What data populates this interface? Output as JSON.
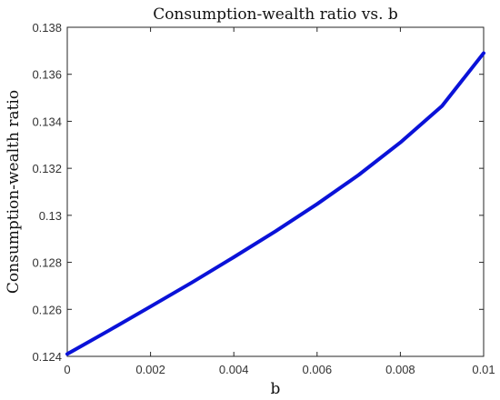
{
  "chart_data": {
    "type": "line",
    "title": "Consumption-wealth ratio vs. b",
    "xlabel": "b",
    "ylabel": "Consumption-wealth ratio",
    "xlim": [
      0,
      0.01
    ],
    "ylim": [
      0.124,
      0.138
    ],
    "x_ticks": [
      "0",
      "0.002",
      "0.004",
      "0.006",
      "0.008",
      "0.01"
    ],
    "y_ticks": [
      "0.124",
      "0.126",
      "0.128",
      "0.13",
      "0.132",
      "0.134",
      "0.136",
      "0.138"
    ],
    "grid": false,
    "series": [
      {
        "color": "#0a12d8",
        "x": [
          0,
          0.001,
          0.002,
          0.003,
          0.004,
          0.005,
          0.006,
          0.007,
          0.008,
          0.009,
          0.01
        ],
        "y": [
          0.1241,
          0.1251,
          0.12612,
          0.12715,
          0.12822,
          0.12932,
          0.13048,
          0.13172,
          0.1331,
          0.13465,
          0.1369
        ]
      }
    ]
  }
}
